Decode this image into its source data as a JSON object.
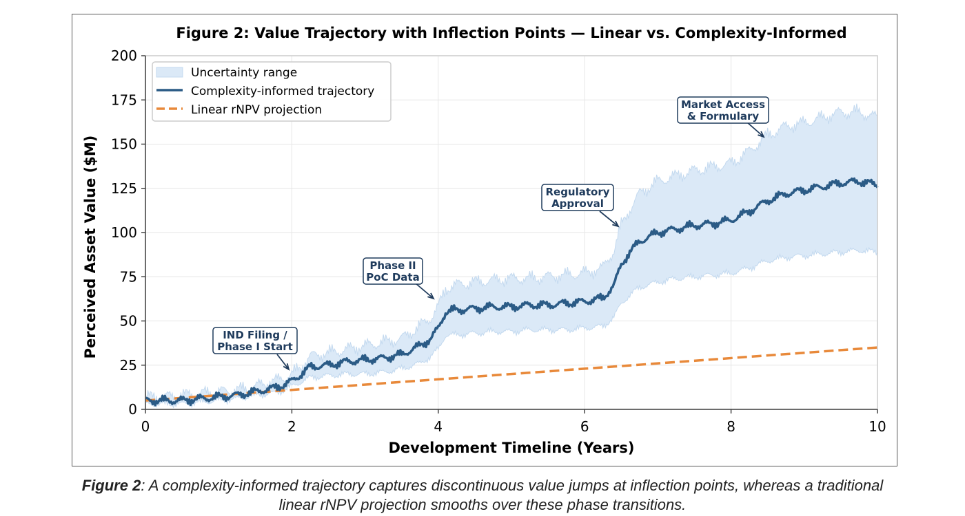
{
  "chart_data": {
    "type": "line",
    "title": "Figure 2: Value Trajectory with Inflection Points — Linear vs. Complexity-Informed",
    "xlabel": "Development Timeline (Years)",
    "ylabel": "Perceived Asset Value ($M)",
    "xlim": [
      0,
      10
    ],
    "ylim": [
      0,
      200
    ],
    "xticks": [
      0,
      2,
      4,
      6,
      8,
      10
    ],
    "yticks": [
      0,
      25,
      50,
      75,
      100,
      125,
      150,
      175,
      200
    ],
    "grid": true,
    "legend_position": "top-left",
    "legend": {
      "band": "Uncertainty range",
      "complexity": "Complexity-informed trajectory",
      "linear": "Linear rNPV projection"
    },
    "colors": {
      "complexity": "#2b5b86",
      "linear": "#e8893a",
      "band_fill": "#dbe9f7",
      "band_edge": "#c3d9ef",
      "annotation": "#1f3b5c"
    },
    "series": [
      {
        "name": "Complexity-informed trajectory",
        "x": [
          0,
          0.25,
          0.5,
          0.75,
          1.0,
          1.25,
          1.5,
          1.75,
          1.9,
          2.0,
          2.1,
          2.25,
          2.5,
          2.75,
          3.0,
          3.25,
          3.5,
          3.75,
          3.9,
          4.0,
          4.1,
          4.2,
          4.5,
          4.75,
          5.0,
          5.25,
          5.5,
          5.75,
          6.0,
          6.25,
          6.4,
          6.5,
          6.6,
          6.75,
          7.0,
          7.25,
          7.5,
          7.75,
          8.0,
          8.25,
          8.5,
          8.75,
          9.0,
          9.25,
          9.5,
          9.75,
          10.0
        ],
        "y": [
          5,
          5,
          5,
          6,
          7,
          8,
          10,
          12,
          14,
          16,
          19,
          24,
          25,
          27,
          28,
          29,
          31,
          36,
          40,
          46,
          55,
          56,
          57,
          58,
          58,
          59,
          59,
          60,
          61,
          63,
          70,
          82,
          88,
          95,
          100,
          102,
          104,
          105,
          107,
          112,
          118,
          122,
          124,
          126,
          128,
          129,
          127
        ]
      },
      {
        "name": "Linear rNPV projection",
        "x": [
          0,
          10
        ],
        "y": [
          5,
          35
        ]
      },
      {
        "name": "Uncertainty range",
        "x": [
          0,
          0.25,
          0.5,
          0.75,
          1.0,
          1.25,
          1.5,
          1.75,
          1.9,
          2.0,
          2.1,
          2.25,
          2.5,
          2.75,
          3.0,
          3.25,
          3.5,
          3.75,
          3.9,
          4.0,
          4.1,
          4.2,
          4.5,
          4.75,
          5.0,
          5.25,
          5.5,
          5.75,
          6.0,
          6.25,
          6.4,
          6.5,
          6.6,
          6.75,
          7.0,
          7.25,
          7.5,
          7.75,
          8.0,
          8.25,
          8.5,
          8.75,
          9.0,
          9.25,
          9.5,
          9.75,
          10.0
        ],
        "lower": [
          3,
          3,
          3,
          4,
          5,
          6,
          8,
          9,
          11,
          13,
          15,
          18,
          19,
          20,
          20,
          21,
          23,
          26,
          30,
          34,
          42,
          42,
          43,
          44,
          44,
          45,
          45,
          45,
          46,
          47,
          52,
          60,
          64,
          69,
          72,
          74,
          75,
          76,
          77,
          80,
          84,
          86,
          87,
          88,
          89,
          90,
          89
        ],
        "upper": [
          7,
          7,
          8,
          9,
          10,
          11,
          13,
          16,
          18,
          20,
          23,
          30,
          32,
          34,
          36,
          38,
          40,
          47,
          52,
          58,
          68,
          70,
          72,
          73,
          74,
          74,
          75,
          76,
          77,
          80,
          90,
          104,
          112,
          122,
          129,
          132,
          135,
          137,
          139,
          146,
          155,
          160,
          162,
          165,
          168,
          168,
          165
        ]
      }
    ],
    "annotations": [
      {
        "label": "IND Filing /\nPhase I Start",
        "x": 2.0,
        "y": 17
      },
      {
        "label": "Phase II\nPoC Data",
        "x": 4.0,
        "y": 58
      },
      {
        "label": "Regulatory\nApproval",
        "x": 6.5,
        "y": 101
      },
      {
        "label": "Market Access\n& Formulary",
        "x": 8.5,
        "y": 153
      }
    ]
  },
  "caption": {
    "label": "Figure 2",
    "text": ": A complexity-informed trajectory captures discontinuous value jumps at inflection points, whereas a traditional linear rNPV projection smooths over these phase transitions."
  }
}
